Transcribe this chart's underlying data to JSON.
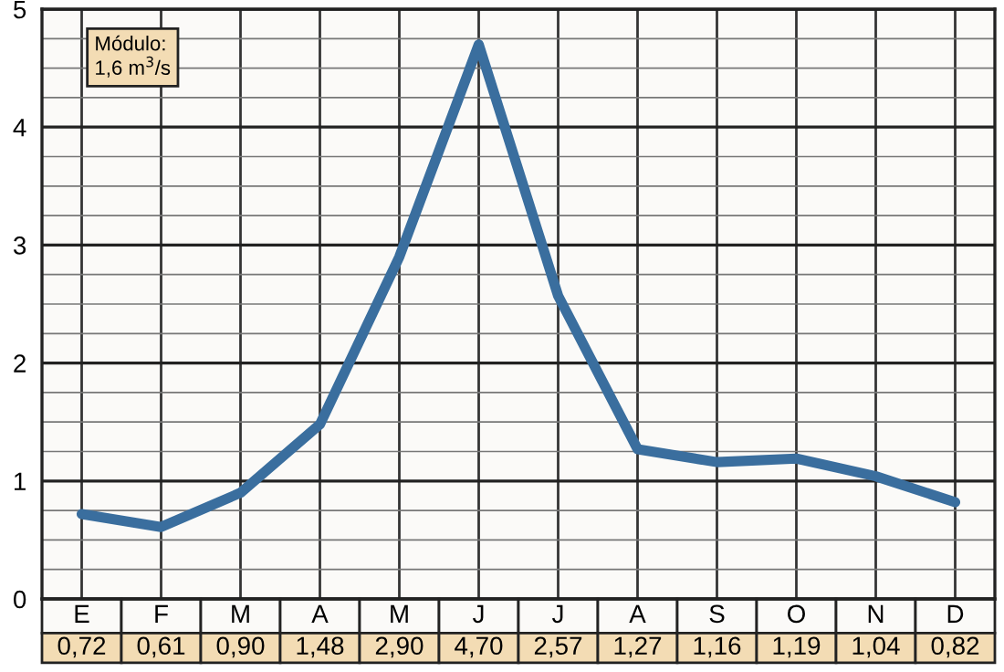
{
  "chart_data": {
    "type": "line",
    "categories": [
      "E",
      "F",
      "M",
      "A",
      "M",
      "J",
      "J",
      "A",
      "S",
      "O",
      "N",
      "D"
    ],
    "series": [
      {
        "color": "#3a6e9e",
        "values": [
          0.72,
          0.61,
          0.9,
          1.48,
          2.9,
          4.7,
          2.57,
          1.27,
          1.16,
          1.19,
          1.04,
          0.82
        ],
        "value_labels": [
          "0,72",
          "0,61",
          "0,90",
          "1,48",
          "2,90",
          "4,70",
          "2,57",
          "1,27",
          "1,16",
          "1,19",
          "1,04",
          "0,82"
        ]
      }
    ],
    "ylim": [
      0,
      5
    ],
    "yticks": [
      0,
      1,
      2,
      3,
      4,
      5
    ],
    "grid": true,
    "line_style": "solid",
    "marker": "none",
    "annotations": [
      "Módulo:\n1,6 m$^{3}$/s"
    ]
  }
}
